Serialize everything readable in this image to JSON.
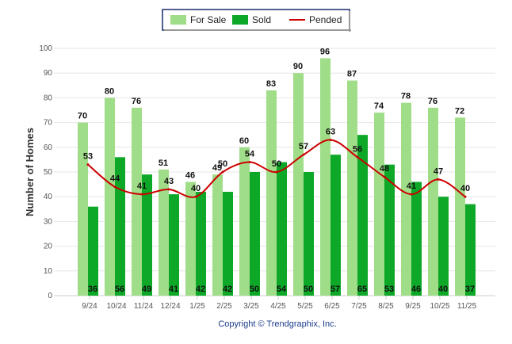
{
  "chart_data": {
    "type": "bar",
    "title": "",
    "xlabel": "",
    "ylabel": "Number of Homes",
    "ylim": [
      0,
      100
    ],
    "yticks": [
      0,
      10,
      20,
      30,
      40,
      50,
      60,
      70,
      80,
      90,
      100
    ],
    "grid": true,
    "legend_position": "top-center",
    "categories": [
      "9/24",
      "10/24",
      "11/24",
      "12/24",
      "1/25",
      "2/25",
      "3/25",
      "4/25",
      "5/25",
      "6/25",
      "7/25",
      "8/25",
      "9/25",
      "10/25",
      "11/25"
    ],
    "series": [
      {
        "name": "For Sale",
        "type": "bar",
        "color": "#a0dd88",
        "values": [
          70,
          80,
          76,
          51,
          46,
          49,
          60,
          83,
          90,
          96,
          87,
          74,
          78,
          76,
          72
        ]
      },
      {
        "name": "Sold",
        "type": "bar",
        "color": "#0ea829",
        "values": [
          36,
          56,
          49,
          41,
          42,
          42,
          50,
          54,
          50,
          57,
          65,
          53,
          46,
          40,
          37
        ]
      },
      {
        "name": "Pended",
        "type": "line",
        "color": "#cc0000",
        "values": [
          53,
          44,
          41,
          43,
          40,
          50,
          54,
          50,
          57,
          63,
          56,
          48,
          41,
          47,
          40
        ]
      }
    ]
  },
  "footer": {
    "copyright": "Copyright © Trendgraphix, Inc."
  }
}
